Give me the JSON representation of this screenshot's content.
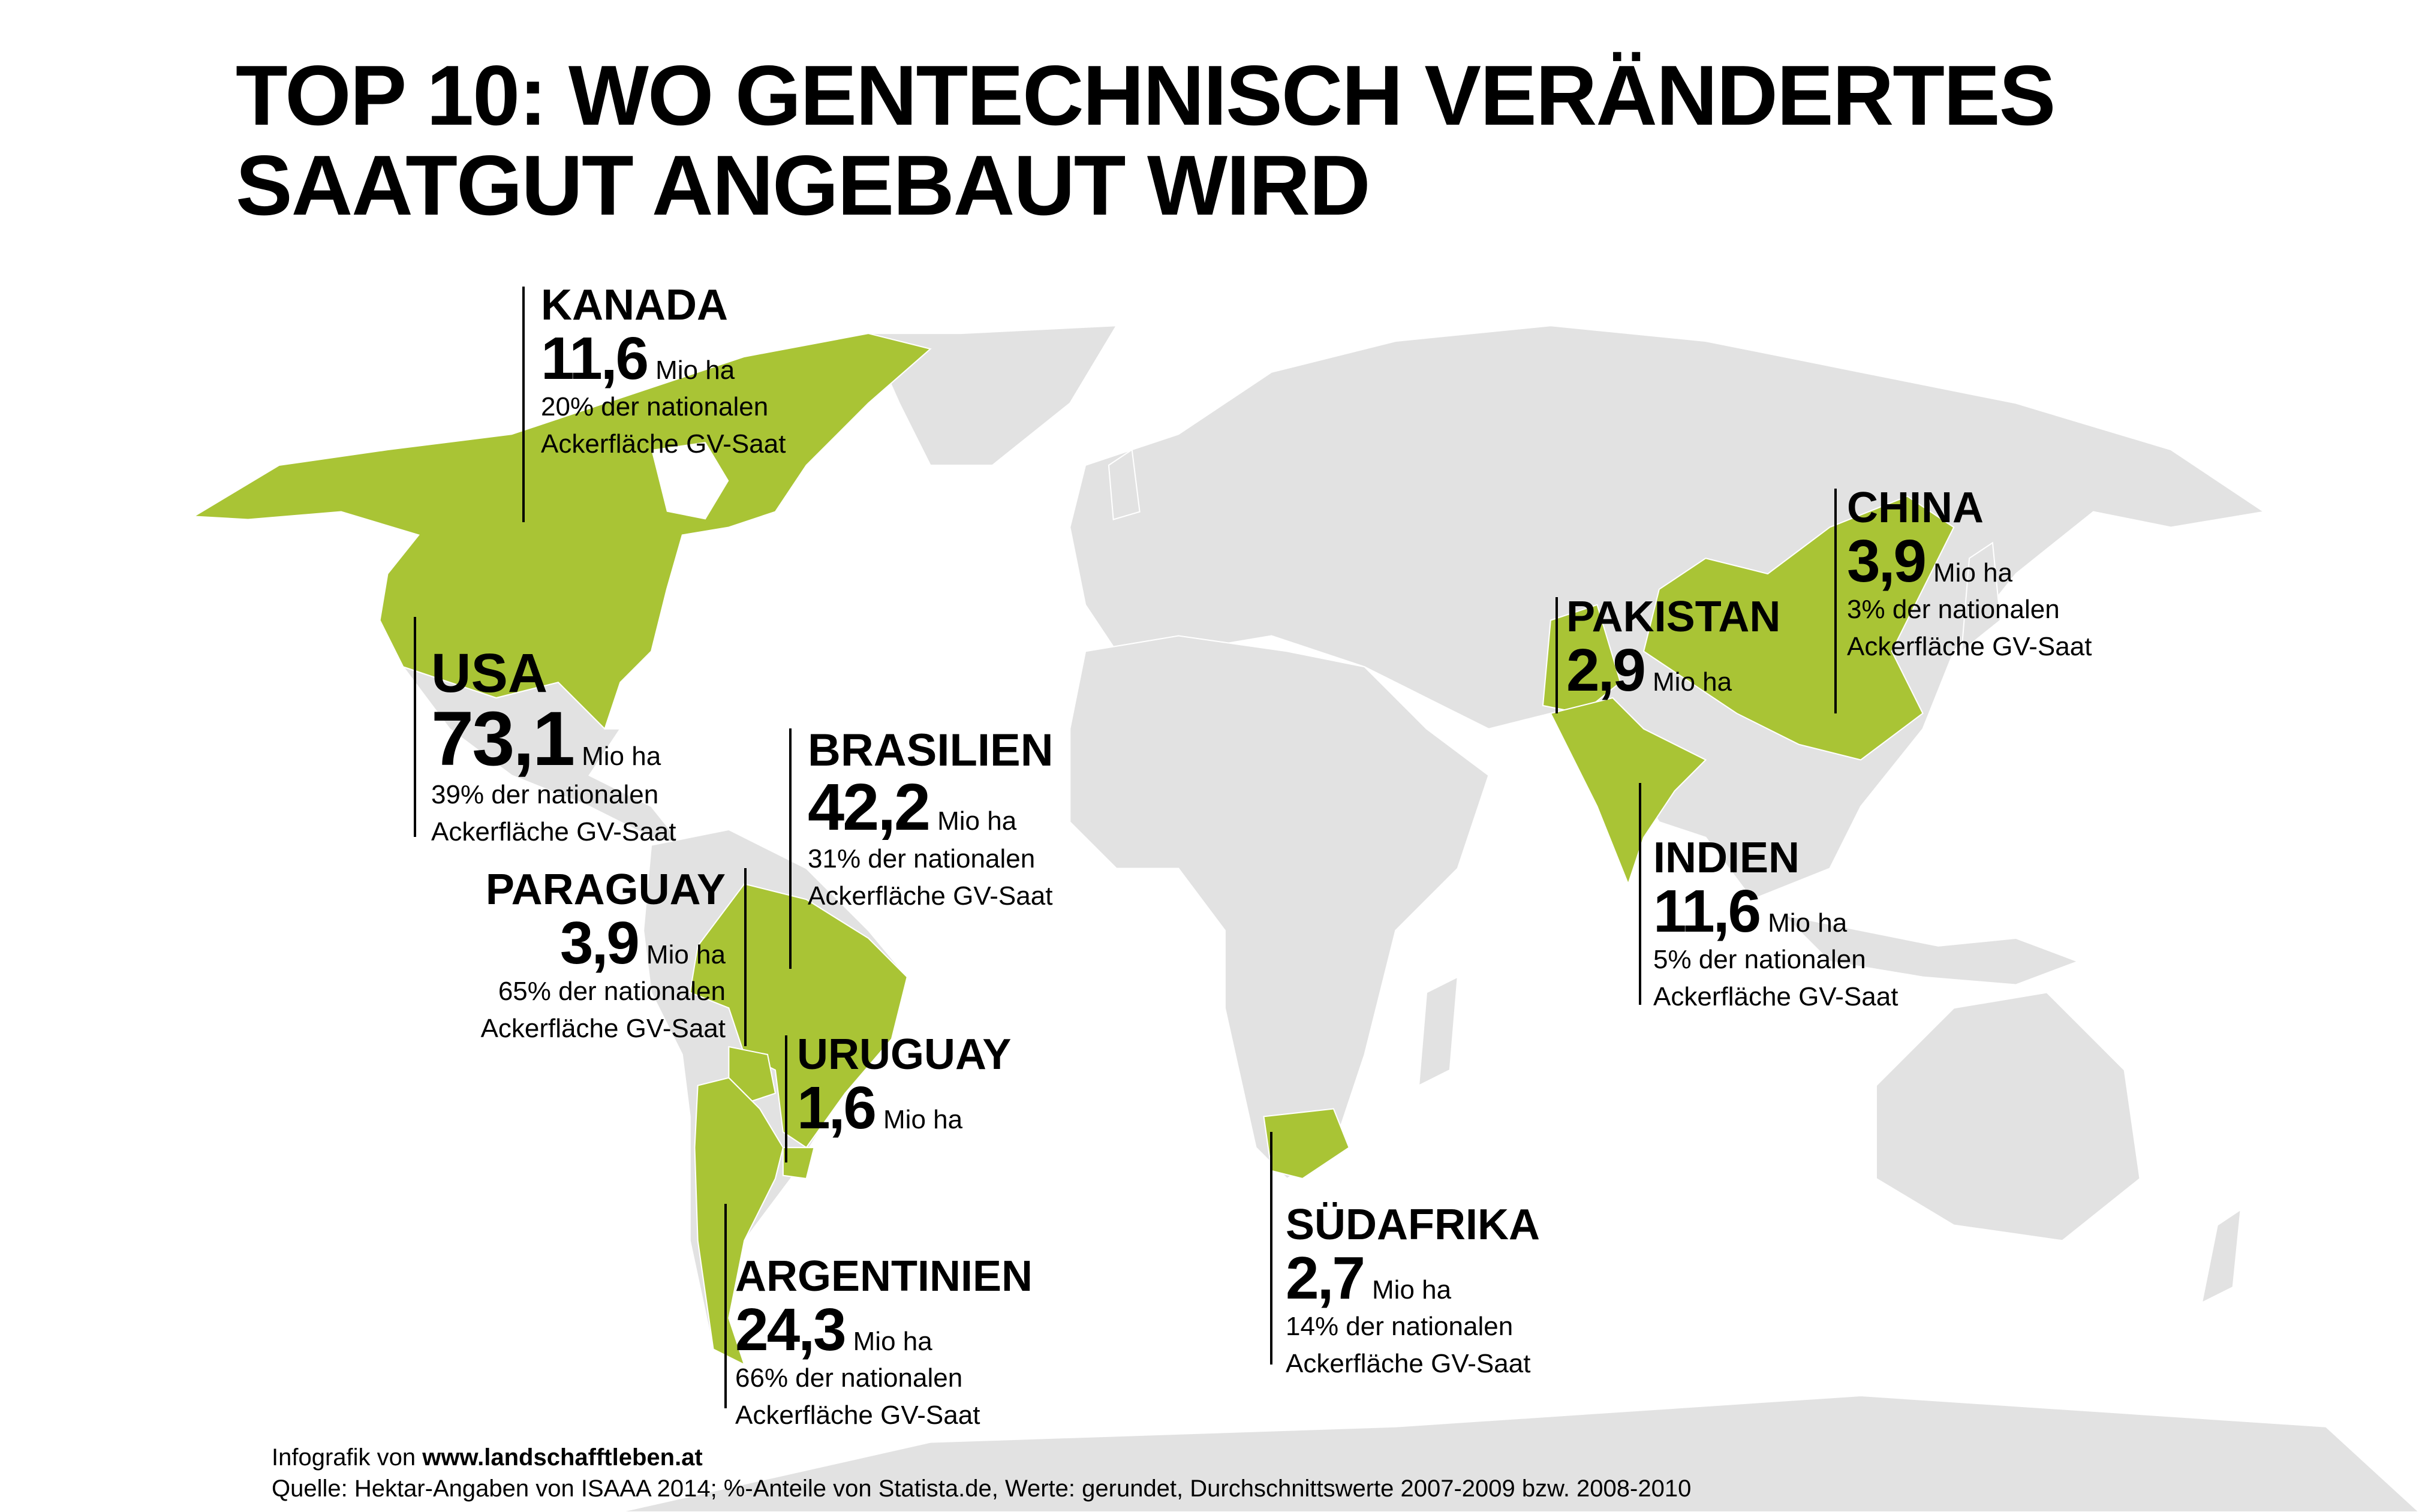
{
  "title_line1": "TOP 10: WO GENTECHNISCH VERÄNDERTES",
  "title_line2": "SAATGUT ANGEBAUT WIRD",
  "colors": {
    "gmo_country": "#a9c435",
    "other_land": "#e2e2e2",
    "background": "#ffffff"
  },
  "countries": [
    {
      "name": "KANADA",
      "value": "11,6",
      "unit": "Mio ha",
      "share": "20% der nationalen",
      "share2": "Ackerfläche GV-Saat"
    },
    {
      "name": "USA",
      "value": "73,1",
      "unit": "Mio ha",
      "share": "39% der nationalen",
      "share2": "Ackerfläche GV-Saat"
    },
    {
      "name": "BRASILIEN",
      "value": "42,2",
      "unit": "Mio ha",
      "share": "31% der nationalen",
      "share2": "Ackerfläche GV-Saat"
    },
    {
      "name": "PARAGUAY",
      "value": "3,9",
      "unit": "Mio ha",
      "share": "65% der nationalen",
      "share2": "Ackerfläche GV-Saat"
    },
    {
      "name": "URUGUAY",
      "value": "1,6",
      "unit": "Mio ha"
    },
    {
      "name": "ARGENTINIEN",
      "value": "24,3",
      "unit": "Mio ha",
      "share": "66% der nationalen",
      "share2": "Ackerfläche GV-Saat"
    },
    {
      "name": "SÜDAFRIKA",
      "value": "2,7",
      "unit": "Mio ha",
      "share": "14% der nationalen",
      "share2": "Ackerfläche GV-Saat"
    },
    {
      "name": "INDIEN",
      "value": "11,6",
      "unit": "Mio ha",
      "share": "5% der nationalen",
      "share2": "Ackerfläche GV-Saat"
    },
    {
      "name": "PAKISTAN",
      "value": "2,9",
      "unit": "Mio ha"
    },
    {
      "name": "CHINA",
      "value": "3,9",
      "unit": "Mio ha",
      "share": "3% der nationalen",
      "share2": "Ackerfläche GV-Saat"
    }
  ],
  "footer": {
    "credit_prefix": "Infografik von",
    "credit_site": "www.landschafftleben.at",
    "source": "Quelle: Hektar-Angaben von ISAAA 2014; %-Anteile von Statista.de, Werte: gerundet, Durchschnittswerte 2007-2009 bzw. 2008-2010"
  }
}
